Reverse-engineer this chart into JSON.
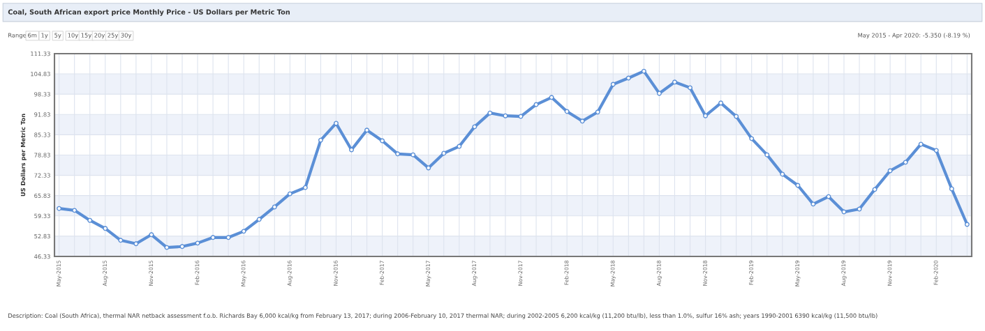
{
  "chart_data": {
    "type": "line",
    "title": "Coal, South African export price Monthly Price - US Dollars per Metric Ton",
    "ylabel": "US Dollars per Metric Ton",
    "categories": [
      "May-2015",
      null,
      null,
      "Aug-2015",
      null,
      null,
      "Nov-2015",
      null,
      null,
      "Feb-2016",
      null,
      null,
      "May-2016",
      null,
      null,
      "Aug-2016",
      null,
      null,
      "Nov-2016",
      null,
      null,
      "Feb-2017",
      null,
      null,
      "May-2017",
      null,
      null,
      "Aug-2017",
      null,
      null,
      "Nov-2017",
      null,
      null,
      "Feb-2018",
      null,
      null,
      "May-2018",
      null,
      null,
      "Aug-2018",
      null,
      null,
      "Nov-2018",
      null,
      null,
      "Feb-2019",
      null,
      null,
      "May-2019",
      null,
      null,
      "Aug-2019",
      null,
      null,
      "Nov-2019",
      null,
      null,
      "Feb-2020",
      null,
      null
    ],
    "series": [
      {
        "color": "#5b8fd6",
        "values": [
          61.7,
          61.1,
          57.9,
          55.3,
          51.5,
          50.4,
          53.3,
          49.2,
          49.5,
          50.6,
          52.4,
          52.4,
          54.4,
          58.2,
          62.2,
          66.4,
          68.4,
          83.6,
          89.0,
          80.5,
          86.8,
          83.4,
          79.2,
          78.9,
          74.7,
          79.4,
          81.6,
          87.9,
          92.3,
          91.4,
          91.2,
          95.0,
          97.3,
          92.8,
          89.7,
          92.6,
          101.5,
          103.5,
          105.7,
          98.6,
          102.2,
          100.4,
          91.4,
          95.5,
          91.2,
          84.1,
          78.9,
          72.7,
          69.1,
          63.1,
          65.5,
          60.6,
          61.5,
          67.8,
          73.8,
          76.5,
          82.3,
          80.3,
          68.0,
          56.6
        ]
      }
    ],
    "ylim": [
      46.33,
      111.33
    ],
    "yticks": [
      46.33,
      52.83,
      59.33,
      65.83,
      72.33,
      78.83,
      85.33,
      91.83,
      98.33,
      104.83,
      111.33
    ],
    "grid": true,
    "marker": "circle",
    "line_style": "solid",
    "legend": false,
    "annotations": [
      "May 2015 - Apr 2020: -5.350 (-8.19 %)",
      "Range",
      "6m",
      "1y",
      "5y",
      "10y",
      "15y",
      "20y",
      "25y",
      "30y",
      "Description: Coal (South Africa), thermal NAR netback assessment f.o.b. Richards Bay 6,000 kcal/kg from February 13, 2017; during 2006-February 10, 2017 thermal NAR; during 2002-2005 6,200 kcal/kg (11,200 btu/lb), less than 1.0%, sulfur 16% ash; years 1990-2001 6390 kcal/kg (11,500 btu/lb)"
    ]
  }
}
